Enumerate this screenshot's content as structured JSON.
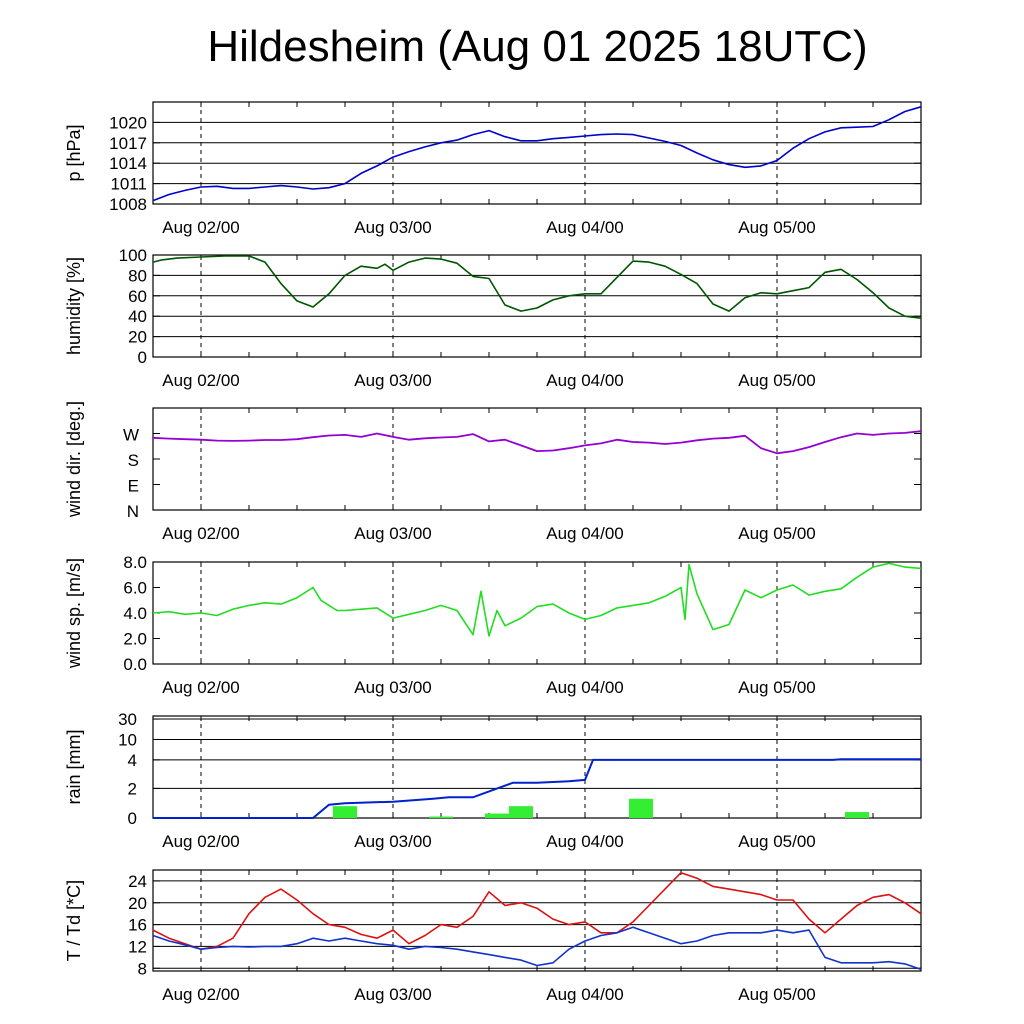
{
  "title": "Hildesheim (Aug 01 2025 18UTC)",
  "colors": {
    "pressure": "#0000cc",
    "humidity": "#005500",
    "wind_dir": "#9400d3",
    "wind_speed": "#22dd22",
    "rain_bar": "#33ee33",
    "rain_cum": "#0022cc",
    "temperature": "#dd1111",
    "dewpoint": "#1133cc"
  },
  "chart_data": [
    {
      "type": "line",
      "id": "pressure",
      "ylabel": "p [hPa]",
      "x_ticks": [
        "Aug 02/00",
        "Aug 03/00",
        "Aug 04/00",
        "Aug 05/00"
      ],
      "y_ticks": [
        "1008",
        "1011",
        "1014",
        "1017",
        "1020"
      ],
      "ylim": [
        1008,
        1023
      ],
      "grid": true,
      "series": [
        {
          "x": [
            0,
            2,
            4,
            6,
            8,
            10,
            12,
            14,
            16,
            18,
            20,
            22,
            24,
            26,
            28,
            30,
            32,
            34,
            36,
            38,
            40,
            42,
            44,
            46,
            48,
            50,
            52,
            54,
            56,
            58,
            60,
            62,
            64,
            66,
            68,
            70,
            72,
            74,
            76,
            78,
            80,
            82,
            84,
            86,
            88,
            90,
            92,
            94,
            96
          ],
          "values": [
            1008.5,
            1009.4,
            1010,
            1010.5,
            1010.6,
            1010.3,
            1010.3,
            1010.5,
            1010.7,
            1010.5,
            1010.2,
            1010.4,
            1011,
            1012.5,
            1013.6,
            1014.9,
            1015.7,
            1016.4,
            1017,
            1017.4,
            1018.2,
            1018.8,
            1017.9,
            1017.3,
            1017.3,
            1017.6,
            1017.8,
            1018,
            1018.2,
            1018.3,
            1018.2,
            1017.7,
            1017.2,
            1016.6,
            1015.5,
            1014.5,
            1013.8,
            1013.4,
            1013.6,
            1014.4,
            1016.2,
            1017.6,
            1018.6,
            1019.2,
            1019.3,
            1019.4,
            1020.4,
            1021.6,
            1022.3
          ]
        }
      ]
    },
    {
      "type": "line",
      "id": "humidity",
      "ylabel": "humidity [%]",
      "x_ticks": [
        "Aug 02/00",
        "Aug 03/00",
        "Aug 04/00",
        "Aug 05/00"
      ],
      "y_ticks": [
        "0",
        "20",
        "40",
        "60",
        "80",
        "100"
      ],
      "ylim": [
        0,
        100
      ],
      "grid": true,
      "series": [
        {
          "x": [
            0,
            1,
            3,
            6,
            9,
            12,
            14,
            16,
            18,
            20,
            22,
            24,
            26,
            28,
            29,
            30,
            32,
            34,
            36,
            38,
            40,
            42,
            44,
            46,
            48,
            50,
            52,
            54,
            56,
            58,
            60,
            62,
            64,
            66,
            68,
            70,
            72,
            74,
            76,
            78,
            80,
            82,
            84,
            86,
            88,
            90,
            92,
            94,
            96
          ],
          "values": [
            93,
            95,
            97,
            98,
            99,
            99,
            93,
            72,
            55,
            49,
            62,
            80,
            89,
            87,
            91,
            85,
            93,
            97,
            96,
            92,
            79,
            77,
            51,
            45,
            48,
            56,
            60,
            62,
            62,
            78,
            94,
            93,
            89,
            81,
            72,
            52,
            45,
            58,
            63,
            62,
            65,
            68,
            83,
            86,
            76,
            63,
            48,
            40,
            38
          ]
        }
      ]
    },
    {
      "type": "line",
      "id": "wind_direction",
      "ylabel": "wind dir. [deg.]",
      "x_ticks": [
        "Aug 02/00",
        "Aug 03/00",
        "Aug 04/00",
        "Aug 05/00"
      ],
      "y_ticks": [
        "N",
        "E",
        "S",
        "W"
      ],
      "ylim": [
        0,
        360
      ],
      "grid": false,
      "series": [
        {
          "x": [
            0,
            2,
            4,
            6,
            8,
            10,
            12,
            14,
            16,
            18,
            20,
            22,
            24,
            26,
            28,
            30,
            32,
            34,
            36,
            38,
            40,
            42,
            44,
            46,
            48,
            50,
            52,
            54,
            56,
            58,
            60,
            62,
            64,
            66,
            68,
            70,
            72,
            74,
            76,
            78,
            80,
            82,
            84,
            86,
            88,
            90,
            92,
            94,
            96
          ],
          "values": [
            255,
            252,
            250,
            248,
            245,
            244,
            245,
            247,
            247,
            250,
            257,
            263,
            265,
            258,
            270,
            258,
            248,
            253,
            256,
            258,
            268,
            242,
            248,
            228,
            208,
            210,
            218,
            228,
            235,
            248,
            240,
            238,
            233,
            238,
            246,
            252,
            255,
            262,
            218,
            200,
            208,
            222,
            240,
            257,
            270,
            265,
            270,
            272,
            278
          ]
        }
      ]
    },
    {
      "type": "line",
      "id": "wind_speed",
      "ylabel": "wind sp. [m/s]",
      "x_ticks": [
        "Aug 02/00",
        "Aug 03/00",
        "Aug 04/00",
        "Aug 05/00"
      ],
      "y_ticks": [
        "0.0",
        "2.0",
        "4.0",
        "6.0",
        "8.0"
      ],
      "ylim": [
        0,
        8
      ],
      "grid": false,
      "series": [
        {
          "x": [
            0,
            2,
            4,
            6,
            8,
            10,
            12,
            14,
            16,
            18,
            20,
            21,
            22,
            23,
            24,
            26,
            28,
            30,
            32,
            34,
            36,
            38,
            40,
            41,
            42,
            43,
            44,
            46,
            48,
            50,
            52,
            54,
            56,
            58,
            60,
            62,
            64,
            66,
            66.5,
            67,
            68,
            70,
            72,
            74,
            76,
            78,
            80,
            82,
            84,
            86,
            88,
            90,
            92,
            94,
            96
          ],
          "values": [
            4,
            4.1,
            3.9,
            4,
            3.8,
            4.3,
            4.6,
            4.8,
            4.7,
            5.2,
            6,
            5,
            4.6,
            4.2,
            4.2,
            4.3,
            4.4,
            3.6,
            3.9,
            4.2,
            4.6,
            4.2,
            2.3,
            5.7,
            2.2,
            4.2,
            3,
            3.6,
            4.5,
            4.7,
            4,
            3.5,
            3.8,
            4.4,
            4.6,
            4.8,
            5.3,
            6,
            3.5,
            7.8,
            5.5,
            2.7,
            3.1,
            5.8,
            5.2,
            5.8,
            6.2,
            5.4,
            5.7,
            5.9,
            6.8,
            7.6,
            7.9,
            7.6,
            7.5
          ]
        }
      ]
    },
    {
      "type": "bar",
      "id": "rain",
      "ylabel": "rain [mm]",
      "x_ticks": [
        "Aug 02/00",
        "Aug 03/00",
        "Aug 04/00",
        "Aug 05/00"
      ],
      "y_ticks": [
        "0",
        "2",
        "4",
        "10",
        "30"
      ],
      "grid": true,
      "bars": {
        "x": [
          24,
          36,
          43,
          46,
          61,
          88
        ],
        "values": [
          0.8,
          0.1,
          0.3,
          0.8,
          1.3,
          0.4
        ]
      },
      "cumulative": {
        "x": [
          0,
          20,
          22,
          24,
          30,
          35,
          37,
          40,
          42,
          45,
          48,
          52,
          54,
          55,
          57,
          62,
          70,
          80,
          85,
          86,
          96
        ],
        "values": [
          0,
          0,
          0.9,
          1,
          1.1,
          1.3,
          1.4,
          1.4,
          1.8,
          2.4,
          2.4,
          2.5,
          2.6,
          4,
          4,
          4,
          4,
          4,
          4,
          4.2,
          4.2
        ]
      }
    },
    {
      "type": "line",
      "id": "temperature_dewpoint",
      "ylabel": "T / Td [*C]",
      "x_ticks": [
        "Aug 02/00",
        "Aug 03/00",
        "Aug 04/00",
        "Aug 05/00"
      ],
      "y_ticks": [
        "8",
        "12",
        "16",
        "20",
        "24"
      ],
      "ylim": [
        7.5,
        26
      ],
      "grid": true,
      "series": [
        {
          "name": "T",
          "x": [
            0,
            2,
            4,
            6,
            8,
            10,
            12,
            14,
            16,
            18,
            20,
            22,
            24,
            26,
            28,
            30,
            32,
            34,
            36,
            38,
            40,
            42,
            44,
            46,
            48,
            50,
            52,
            54,
            56,
            58,
            60,
            62,
            64,
            66,
            68,
            70,
            72,
            74,
            76,
            78,
            80,
            82,
            84,
            86,
            88,
            90,
            92,
            94,
            96
          ],
          "values": [
            15,
            13.5,
            12.5,
            11.5,
            12,
            13.5,
            18,
            21,
            22.5,
            20.5,
            18,
            16,
            15.5,
            14.2,
            13.5,
            15,
            12.5,
            14,
            16,
            15.5,
            17.5,
            22,
            19.5,
            20,
            19,
            17,
            16,
            16.5,
            14.5,
            14.5,
            16.5,
            19.5,
            22.5,
            25.5,
            24.5,
            23,
            22.5,
            22,
            21.5,
            20.5,
            20.5,
            17,
            14.5,
            17,
            19.5,
            21,
            21.5,
            20,
            18
          ]
        },
        {
          "name": "Td",
          "x": [
            0,
            2,
            4,
            6,
            8,
            10,
            12,
            14,
            16,
            18,
            20,
            22,
            24,
            26,
            28,
            30,
            32,
            34,
            36,
            38,
            40,
            42,
            44,
            46,
            48,
            50,
            52,
            54,
            56,
            58,
            60,
            62,
            64,
            66,
            68,
            70,
            72,
            74,
            76,
            78,
            80,
            82,
            84,
            86,
            88,
            90,
            92,
            94,
            96
          ],
          "values": [
            14,
            13,
            12.3,
            11.5,
            11.8,
            12,
            11.9,
            12,
            12,
            12.5,
            13.5,
            13,
            13.5,
            13,
            12.5,
            12.2,
            11.5,
            12,
            11.8,
            11.5,
            11,
            10.5,
            10,
            9.5,
            8.5,
            9,
            11.5,
            13,
            14,
            14.5,
            15.5,
            14.5,
            13.5,
            12.5,
            13,
            14,
            14.5,
            14.5,
            14.5,
            15,
            14.5,
            15,
            10,
            9,
            9,
            9,
            9.2,
            8.8,
            7.8
          ]
        }
      ]
    }
  ]
}
